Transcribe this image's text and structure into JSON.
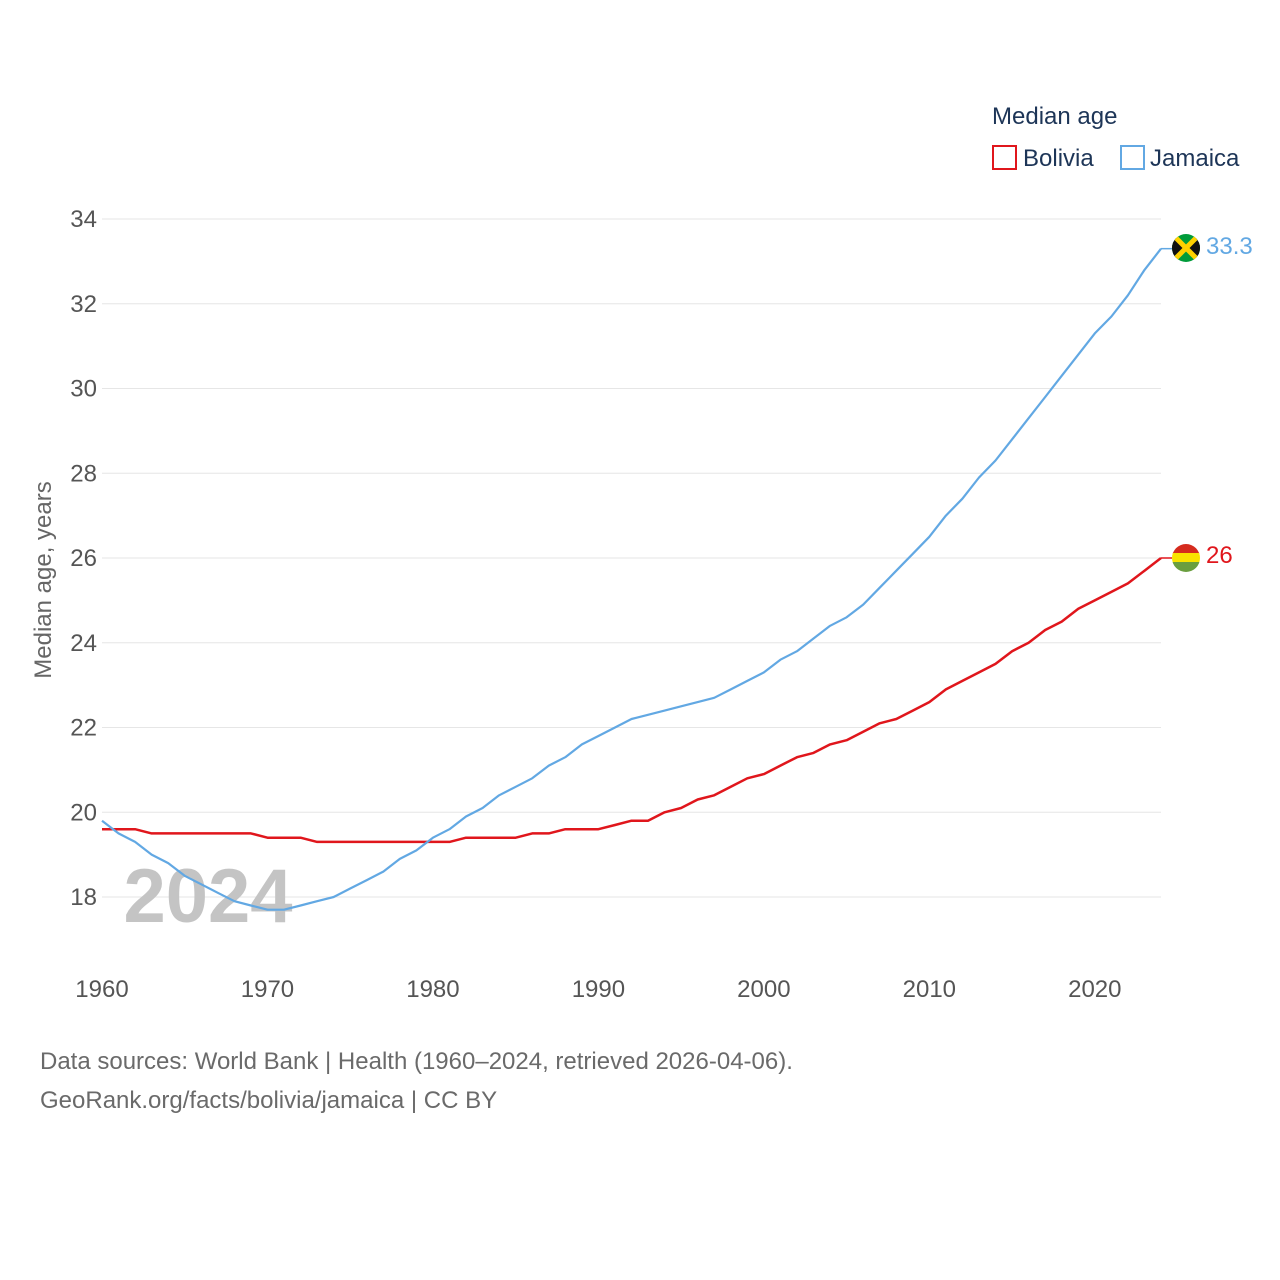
{
  "chart_data": {
    "type": "line",
    "ylabel": "Median age, years",
    "xlabel": "",
    "xlim": [
      1960,
      2024
    ],
    "ylim": [
      17,
      34.5
    ],
    "x_ticks": [
      1960,
      1970,
      1980,
      1990,
      2000,
      2010,
      2020
    ],
    "y_ticks": [
      18,
      20,
      22,
      24,
      26,
      28,
      30,
      32,
      34
    ],
    "year_watermark": "2024",
    "legend": {
      "title": "Median age",
      "position": "top-right"
    },
    "series": [
      {
        "name": "Bolivia",
        "color": "#e0161c",
        "end_label": "26",
        "flag_icon": "bolivia-flag-icon",
        "x": [
          1960,
          1961,
          1962,
          1963,
          1964,
          1965,
          1966,
          1967,
          1968,
          1969,
          1970,
          1971,
          1972,
          1973,
          1974,
          1975,
          1976,
          1977,
          1978,
          1979,
          1980,
          1981,
          1982,
          1983,
          1984,
          1985,
          1986,
          1987,
          1988,
          1989,
          1990,
          1991,
          1992,
          1993,
          1994,
          1995,
          1996,
          1997,
          1998,
          1999,
          2000,
          2001,
          2002,
          2003,
          2004,
          2005,
          2006,
          2007,
          2008,
          2009,
          2010,
          2011,
          2012,
          2013,
          2014,
          2015,
          2016,
          2017,
          2018,
          2019,
          2020,
          2021,
          2022,
          2023,
          2024
        ],
        "values": [
          19.6,
          19.6,
          19.6,
          19.5,
          19.5,
          19.5,
          19.5,
          19.5,
          19.5,
          19.5,
          19.4,
          19.4,
          19.4,
          19.3,
          19.3,
          19.3,
          19.3,
          19.3,
          19.3,
          19.3,
          19.3,
          19.3,
          19.4,
          19.4,
          19.4,
          19.4,
          19.5,
          19.5,
          19.6,
          19.6,
          19.6,
          19.7,
          19.8,
          19.8,
          20.0,
          20.1,
          20.3,
          20.4,
          20.6,
          20.8,
          20.9,
          21.1,
          21.3,
          21.4,
          21.6,
          21.7,
          21.9,
          22.1,
          22.2,
          22.4,
          22.6,
          22.9,
          23.1,
          23.3,
          23.5,
          23.8,
          24.0,
          24.3,
          24.5,
          24.8,
          25.0,
          25.2,
          25.4,
          25.7,
          26.0
        ]
      },
      {
        "name": "Jamaica",
        "color": "#62a8e3",
        "end_label": "33.3",
        "flag_icon": "jamaica-flag-icon",
        "x": [
          1960,
          1961,
          1962,
          1963,
          1964,
          1965,
          1966,
          1967,
          1968,
          1969,
          1970,
          1971,
          1972,
          1973,
          1974,
          1975,
          1976,
          1977,
          1978,
          1979,
          1980,
          1981,
          1982,
          1983,
          1984,
          1985,
          1986,
          1987,
          1988,
          1989,
          1990,
          1991,
          1992,
          1993,
          1994,
          1995,
          1996,
          1997,
          1998,
          1999,
          2000,
          2001,
          2002,
          2003,
          2004,
          2005,
          2006,
          2007,
          2008,
          2009,
          2010,
          2011,
          2012,
          2013,
          2014,
          2015,
          2016,
          2017,
          2018,
          2019,
          2020,
          2021,
          2022,
          2023,
          2024
        ],
        "values": [
          19.8,
          19.5,
          19.3,
          19.0,
          18.8,
          18.5,
          18.3,
          18.1,
          17.9,
          17.8,
          17.7,
          17.7,
          17.8,
          17.9,
          18.0,
          18.2,
          18.4,
          18.6,
          18.9,
          19.1,
          19.4,
          19.6,
          19.9,
          20.1,
          20.4,
          20.6,
          20.8,
          21.1,
          21.3,
          21.6,
          21.8,
          22.0,
          22.2,
          22.3,
          22.4,
          22.5,
          22.6,
          22.7,
          22.9,
          23.1,
          23.3,
          23.6,
          23.8,
          24.1,
          24.4,
          24.6,
          24.9,
          25.3,
          25.7,
          26.1,
          26.5,
          27.0,
          27.4,
          27.9,
          28.3,
          28.8,
          29.3,
          29.8,
          30.3,
          30.8,
          31.3,
          31.7,
          32.2,
          32.8,
          33.3
        ]
      }
    ]
  },
  "footer": {
    "sources": "Data sources: World Bank | Health (1960–2024, retrieved 2026-04-06).",
    "attribution": "GeoRank.org/facts/bolivia/jamaica | CC BY"
  }
}
